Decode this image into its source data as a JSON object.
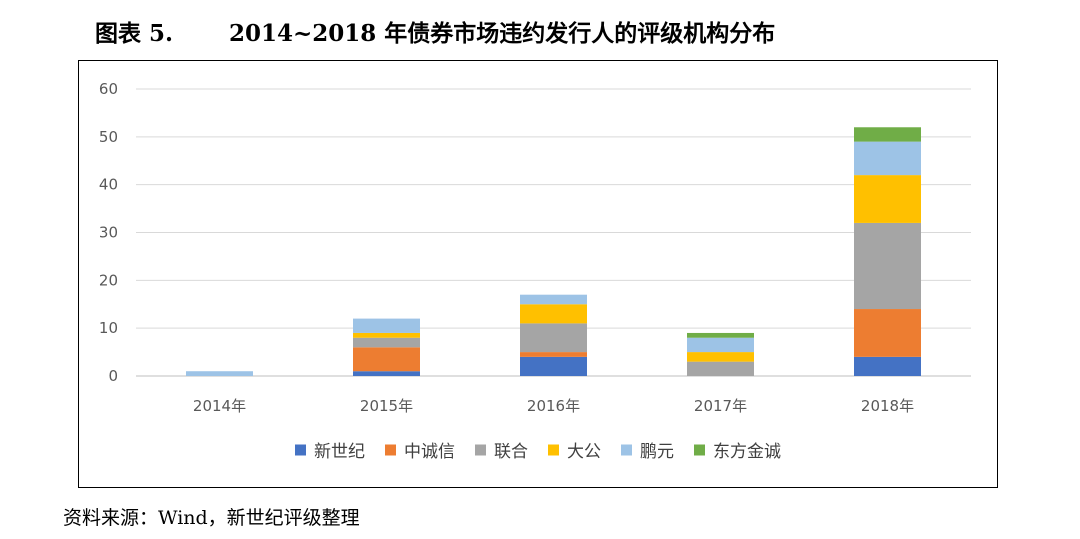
{
  "title": {
    "label": "图表 5.",
    "text": "2014~2018 年债券市场违约发行人的评级机构分布"
  },
  "source": "资料来源：Wind，新世纪评级整理",
  "chart_data": {
    "type": "bar",
    "stacked": true,
    "categories": [
      "2014年",
      "2015年",
      "2016年",
      "2017年",
      "2018年"
    ],
    "ylim": [
      0,
      60
    ],
    "yticks": [
      0,
      10,
      20,
      30,
      40,
      50,
      60
    ],
    "grid": true,
    "legend_position": "bottom",
    "series": [
      {
        "name": "新世纪",
        "color": "#4472C4",
        "values": [
          0,
          1,
          4,
          0,
          4
        ]
      },
      {
        "name": "中诚信",
        "color": "#ED7D31",
        "values": [
          0,
          5,
          1,
          0,
          10
        ]
      },
      {
        "name": "联合",
        "color": "#A5A5A5",
        "values": [
          0,
          2,
          6,
          3,
          18
        ]
      },
      {
        "name": "大公",
        "color": "#FFC000",
        "values": [
          0,
          1,
          4,
          2,
          10
        ]
      },
      {
        "name": "鹏元",
        "color": "#9DC3E6",
        "values": [
          1,
          3,
          2,
          3,
          7
        ]
      },
      {
        "name": "东方金诚",
        "color": "#70AD47",
        "values": [
          0,
          0,
          0,
          1,
          3
        ]
      }
    ]
  }
}
